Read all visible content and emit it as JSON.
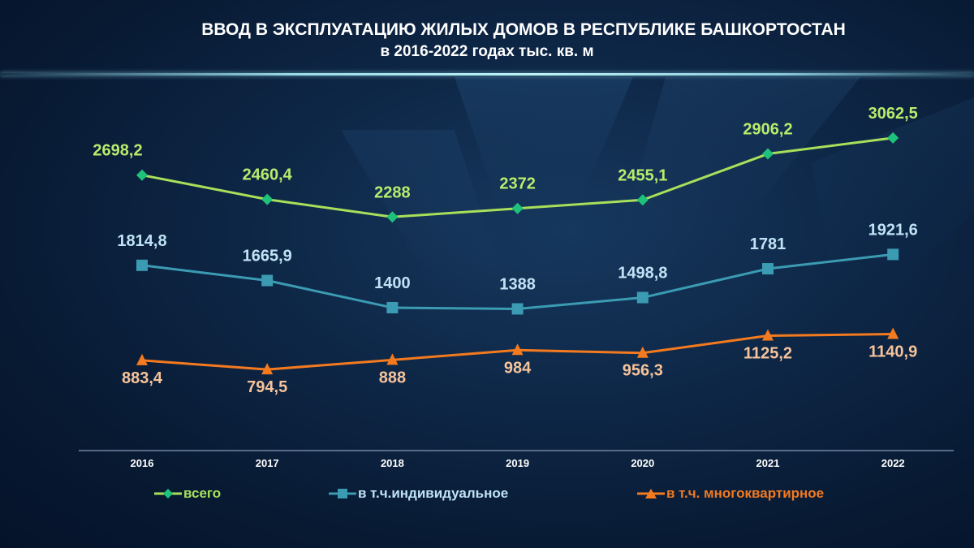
{
  "title": "ВВОД В ЭКСПЛУАТАЦИЮ ЖИЛЫХ ДОМОВ В РЕСПУБЛИКЕ БАШКОРТОСТАН",
  "subtitle": "в 2016-2022 годах  тыс. кв. м",
  "colors": {
    "total_line": "#a8e05a",
    "total_marker": "#1fc27a",
    "total_label": "#b9ec6c",
    "individual": "#3b9bb3",
    "individual_label": "#bfe3f5",
    "multi": "#f47a1f",
    "multi_label": "#f6c39a"
  },
  "chart_data": {
    "type": "line",
    "categories": [
      "2016",
      "2017",
      "2018",
      "2019",
      "2020",
      "2021",
      "2022"
    ],
    "series": [
      {
        "name": "всего",
        "values": [
          2698.2,
          2460.4,
          2288,
          2372,
          2455.1,
          2906.2,
          3062.5
        ],
        "labels": [
          "2698,2",
          "2460,4",
          "2288",
          "2372",
          "2455,1",
          "2906,2",
          "3062,5"
        ],
        "marker": "diamond"
      },
      {
        "name": "в т.ч.индивидуальное",
        "values": [
          1814.8,
          1665.9,
          1400,
          1388,
          1498.8,
          1781,
          1921.6
        ],
        "labels": [
          "1814,8",
          "1665,9",
          "1400",
          "1388",
          "1498,8",
          "1781",
          "1921,6"
        ],
        "marker": "square"
      },
      {
        "name": "в т.ч. многоквартирное",
        "values": [
          883.4,
          794.5,
          888,
          984,
          956.3,
          1125.2,
          1140.9
        ],
        "labels": [
          "883,4",
          "794,5",
          "888",
          "984",
          "956,3",
          "1125,2",
          "1140,9"
        ],
        "marker": "triangle"
      }
    ],
    "legend_position": "bottom",
    "grid": false
  }
}
